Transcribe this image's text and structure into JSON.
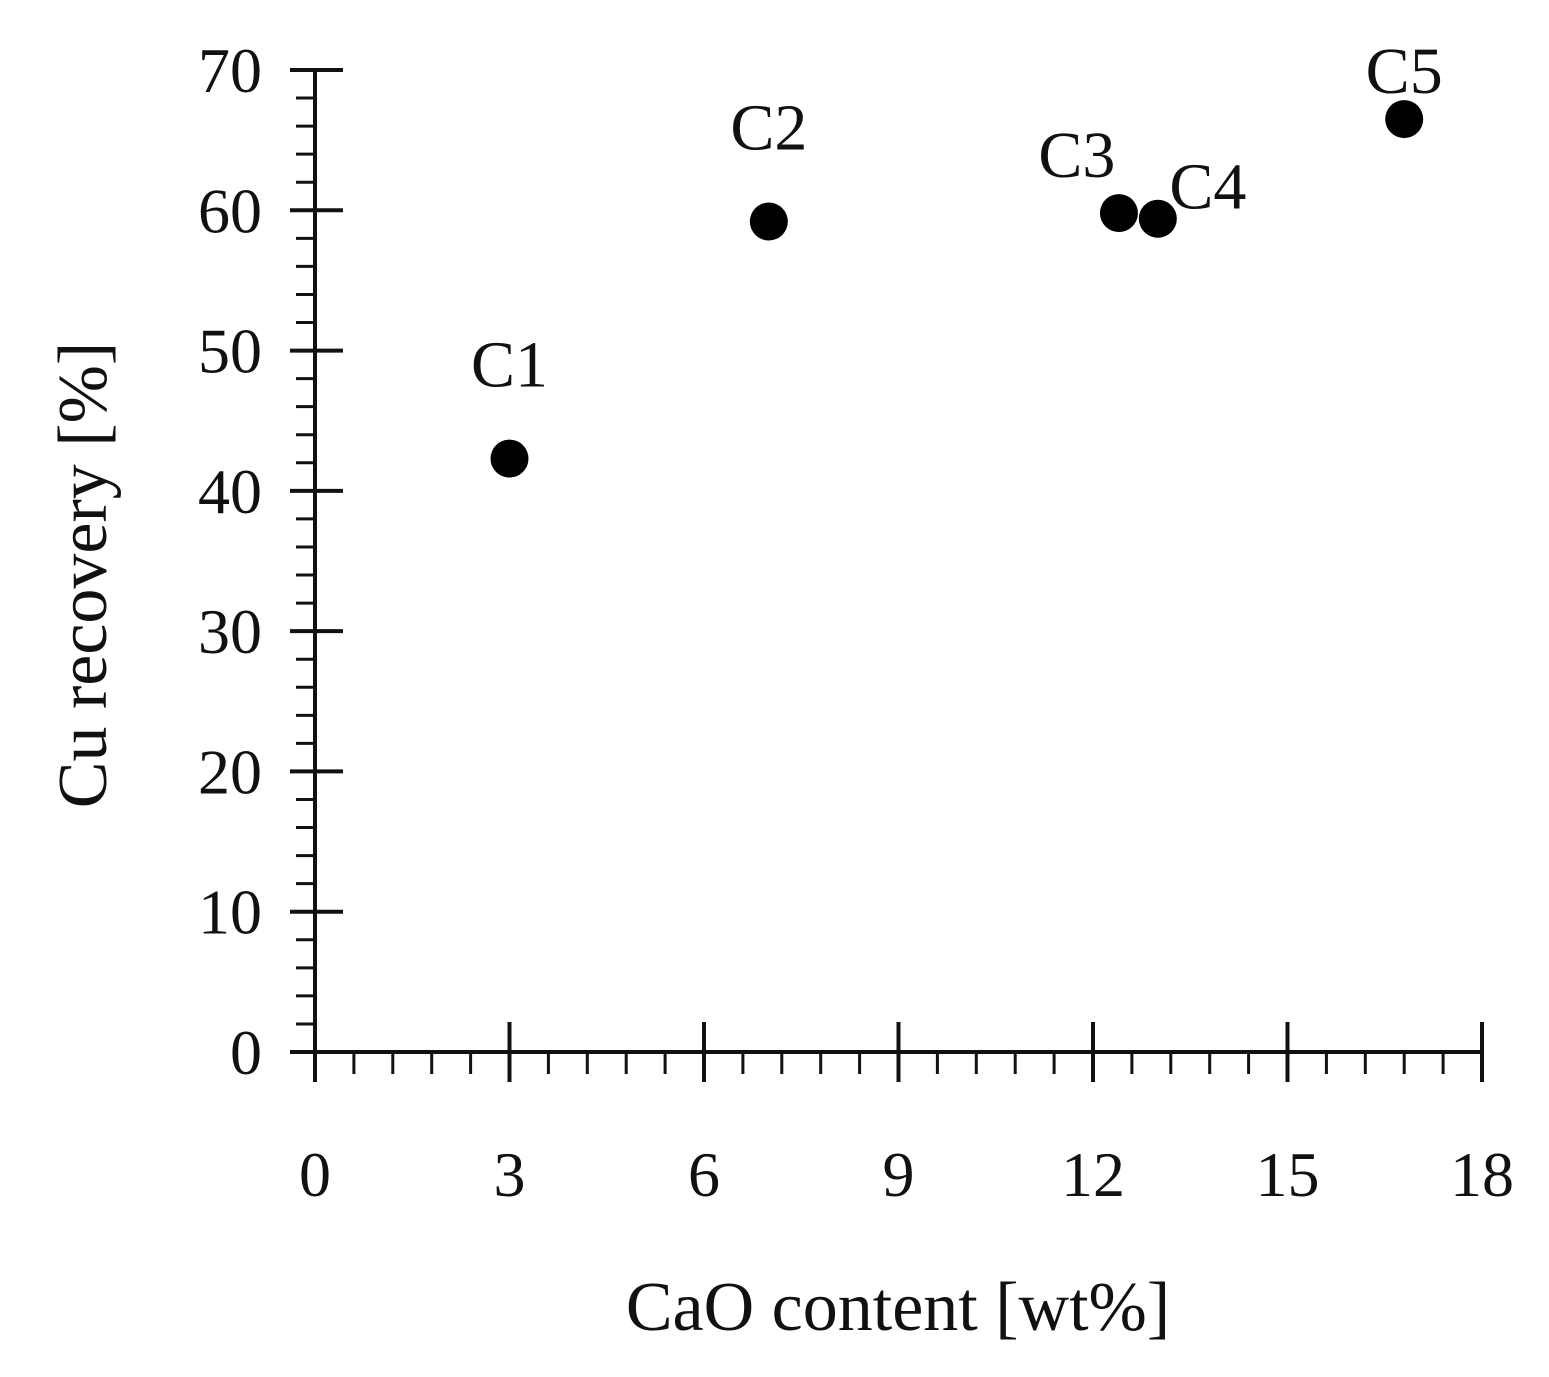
{
  "chart_data": {
    "type": "scatter",
    "title": "",
    "xlabel": "CaO content [wt%]",
    "ylabel": "Cu recovery [%]",
    "xlim": [
      0,
      18
    ],
    "ylim": [
      0,
      70
    ],
    "x_ticks": [
      "0",
      "3",
      "6",
      "9",
      "12",
      "15",
      "18"
    ],
    "y_ticks": [
      "0",
      "10",
      "20",
      "30",
      "40",
      "50",
      "60",
      "70"
    ],
    "grid": false,
    "legend": "none",
    "marker_color": "#000000",
    "points": [
      {
        "label": "C1",
        "x": 3.0,
        "y": 42.3
      },
      {
        "label": "C2",
        "x": 7.0,
        "y": 59.2
      },
      {
        "label": "C3",
        "x": 12.4,
        "y": 59.8
      },
      {
        "label": "C4",
        "x": 13.0,
        "y": 59.4
      },
      {
        "label": "C5",
        "x": 16.8,
        "y": 66.5
      }
    ]
  }
}
